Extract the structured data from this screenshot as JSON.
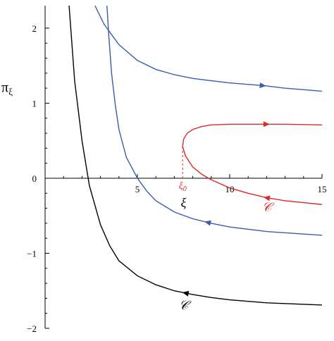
{
  "chart_data": {
    "type": "line",
    "title": "",
    "xlabel": "ξ",
    "ylabel": "π",
    "ylabel_subscript": "ξ",
    "xlim": [
      0,
      15
    ],
    "ylim": [
      -2,
      2.3
    ],
    "grid": false,
    "x_ticks": [
      5,
      10,
      15
    ],
    "x_tick_labels": [
      "5",
      "10",
      "15"
    ],
    "y_ticks": [
      -2,
      -1,
      0,
      1,
      2
    ],
    "y_tick_labels": [
      "−2",
      "−1",
      "0",
      "1",
      "2"
    ],
    "colors": {
      "blue": "#3a5bb0",
      "red": "#e02828",
      "black": "#000000"
    },
    "series": [
      {
        "color": "black",
        "x": [
          1.3,
          1.6,
          2.0,
          2.4,
          3.0,
          3.5,
          4.0,
          5.0,
          6.0,
          7.0,
          8.0,
          9.0,
          10.0,
          12.0,
          15.0
        ],
        "y": [
          2.3,
          1.3,
          0.5,
          -0.1,
          -0.62,
          -0.9,
          -1.1,
          -1.3,
          -1.42,
          -1.5,
          -1.55,
          -1.59,
          -1.62,
          -1.66,
          -1.69
        ],
        "arrow": {
          "at_x": 7.6,
          "direction": "left"
        }
      },
      {
        "color": "blue",
        "x": [
          2.7,
          3.2,
          4.0,
          5.0,
          6.0,
          7.0,
          8.0,
          9.0,
          10.0,
          11.0,
          12.0,
          13.0,
          15.0
        ],
        "y": [
          2.3,
          2.05,
          1.78,
          1.57,
          1.45,
          1.38,
          1.33,
          1.3,
          1.27,
          1.25,
          1.23,
          1.2,
          1.16
        ],
        "arrow": {
          "at_x": 11.8,
          "direction": "right"
        }
      },
      {
        "color": "blue",
        "x": [
          3.35,
          3.45,
          3.6,
          3.8,
          4.0,
          4.4,
          5.0,
          5.5,
          6.0,
          7.0,
          8.0,
          9.0,
          10.0,
          12.0,
          15.0
        ],
        "y": [
          2.3,
          1.9,
          1.4,
          0.98,
          0.65,
          0.28,
          0.0,
          -0.17,
          -0.3,
          -0.45,
          -0.54,
          -0.6,
          -0.65,
          -0.71,
          -0.76
        ],
        "arrow": {
          "at_x": 8.8,
          "direction": "left"
        }
      },
      {
        "color": "red",
        "x": [
          15.0,
          13.0,
          12.0,
          11.0,
          10.0,
          9.0,
          8.5,
          8.0,
          7.6,
          7.45,
          7.5,
          7.7,
          8.0,
          8.5,
          9.0,
          10.0,
          11.0,
          12.0,
          13.0,
          15.0
        ],
        "y": [
          -0.35,
          -0.3,
          -0.26,
          -0.2,
          -0.13,
          -0.02,
          0.05,
          0.15,
          0.3,
          0.42,
          0.52,
          0.6,
          0.65,
          0.69,
          0.71,
          0.72,
          0.72,
          0.72,
          0.72,
          0.71
        ],
        "arrow_upper": {
          "at_x": 12.0,
          "direction": "right"
        },
        "arrow_lower": {
          "at_x": 12.0,
          "direction": "left"
        }
      }
    ],
    "annotations": [
      {
        "text": "ξ",
        "subscript": "0",
        "x": 7.45,
        "y": -0.14,
        "color": "red"
      },
      {
        "text": "𝒞",
        "x": 12.0,
        "y": -0.44,
        "color": "red"
      },
      {
        "text": "𝒞",
        "x": 7.5,
        "y": -1.75,
        "color": "black"
      },
      {
        "text": "ξ",
        "x": 7.5,
        "y": -0.38,
        "color": "black"
      }
    ],
    "dashed_line": {
      "x": 7.45,
      "y_from": 0.0,
      "y_to": 0.42,
      "color": "red"
    }
  }
}
